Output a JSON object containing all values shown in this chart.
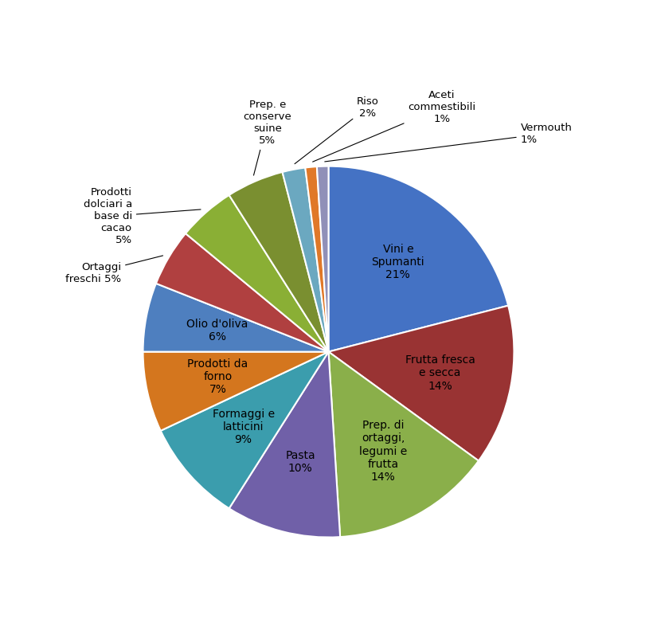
{
  "values": [
    21,
    14,
    14,
    10,
    9,
    7,
    6,
    5,
    5,
    5,
    2,
    1,
    1
  ],
  "colors": [
    "#4472C4",
    "#993333",
    "#8AAF4A",
    "#7060A8",
    "#3B9DAD",
    "#D4761E",
    "#4E7FBF",
    "#B04040",
    "#8AAF35",
    "#7A8F30",
    "#6BA8C0",
    "#E07828",
    "#9090B8"
  ],
  "inside_labels": [
    "Vini e\nSpumanti\n21%",
    "Frutta fresca\ne secca\n14%",
    "Prep. di\nortaggi,\nlegumi e\nfrutta\n14%",
    "Pasta\n10%",
    "Formaggi e\nlatticini\n9%",
    "Prodotti da\nforno\n7%",
    "Olio d'oliva\n6%",
    "",
    "",
    "",
    "",
    "",
    ""
  ],
  "outside_labels": [
    "",
    "",
    "",
    "",
    "",
    "",
    "",
    "Ortaggi\nfreschi 5%",
    "Prodotti\ndolciari a\nbase di\ncacao\n5%",
    "Prep. e\nconserve\nsuine\n5%",
    "Riso\n2%",
    "Aceti\ncommestibili\n1%",
    "Vermouth\n1%"
  ],
  "startangle": 90,
  "background_color": "#ffffff"
}
